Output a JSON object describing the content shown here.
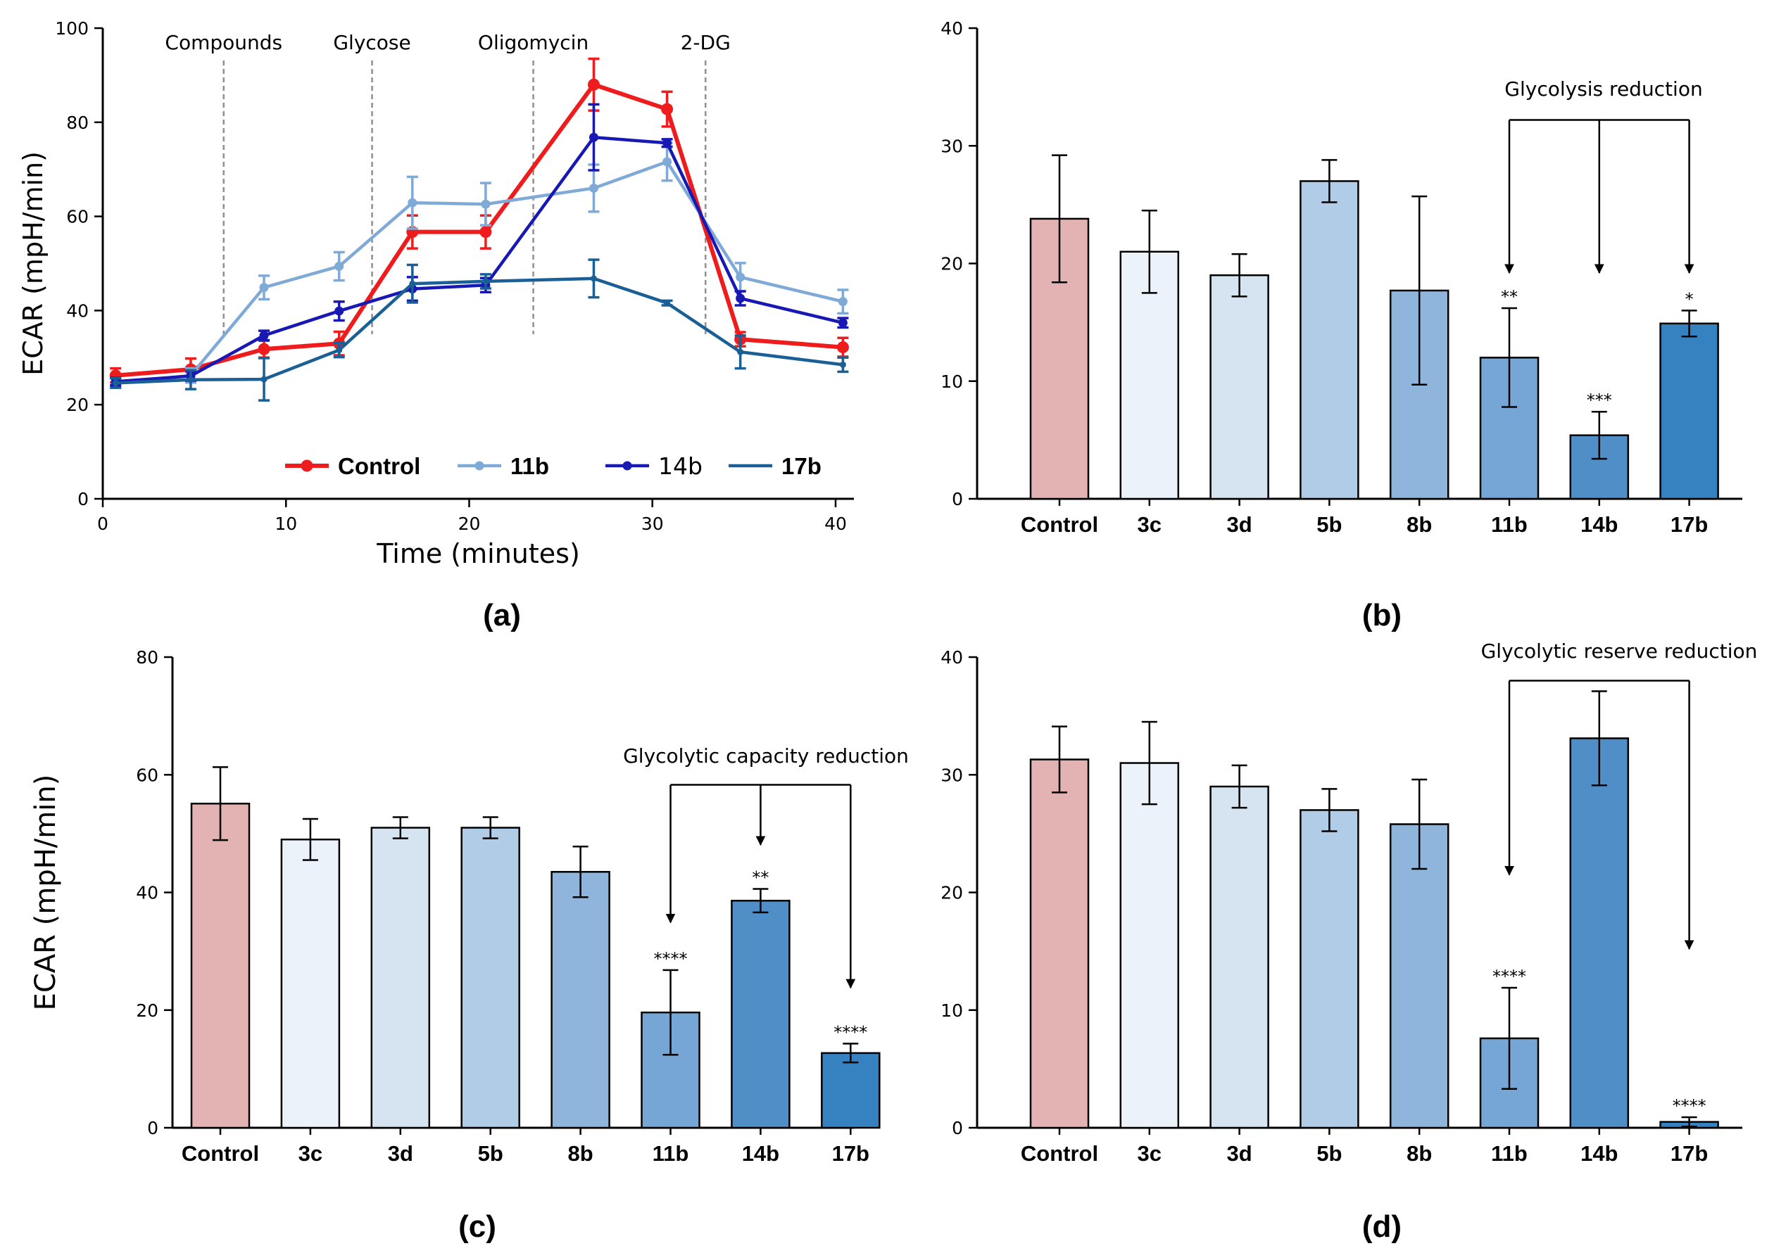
{
  "panel_labels": [
    "(a)",
    "(b)",
    "(c)",
    "(d)"
  ],
  "chart_data": [
    {
      "panel": "(a)",
      "type": "line",
      "xlabel": "Time (minutes)",
      "ylabel": "ECAR (mpH/min)",
      "xlim": [
        0,
        41
      ],
      "ylim": [
        0,
        100
      ],
      "xticks": [
        0,
        10,
        20,
        30,
        40
      ],
      "yticks": [
        0,
        20,
        40,
        60,
        80,
        100
      ],
      "injections": [
        {
          "label": "Compounds",
          "x": 6.6
        },
        {
          "label": "Glycose",
          "x": 14.7
        },
        {
          "label": "Oligomycin",
          "x": 23.5
        },
        {
          "label": "2-DG",
          "x": 32.9
        }
      ],
      "x": [
        0.7,
        4.8,
        8.8,
        12.9,
        16.9,
        20.9,
        26.8,
        30.8,
        34.8,
        40.4
      ],
      "series": [
        {
          "name": "Control",
          "color": "#ee1c1c",
          "bold": true,
          "values": [
            26.2,
            27.5,
            31.8,
            33,
            56.7,
            56.7,
            88,
            82.8,
            33.9,
            32.2
          ],
          "errors": [
            1.5,
            2.3,
            1.8,
            2.5,
            3.5,
            3.5,
            5.5,
            3.7,
            1.5,
            2.0
          ]
        },
        {
          "name": "11b",
          "color": "#7fa9d6",
          "bold": true,
          "values": [
            24.6,
            26.2,
            44.9,
            49.4,
            62.9,
            62.6,
            66,
            71.6,
            47.1,
            41.9
          ],
          "errors": [
            1.0,
            1.5,
            2.5,
            3.0,
            5.5,
            4.5,
            5.0,
            4.0,
            3.0,
            2.5
          ]
        },
        {
          "name": "14b",
          "color": "#1818b5",
          "bold": false,
          "values": [
            24.9,
            26.1,
            34.7,
            39.9,
            44.6,
            45.4,
            76.8,
            75.6,
            42.6,
            37.4
          ],
          "errors": [
            0.8,
            1.0,
            1.0,
            2.0,
            2.5,
            1.5,
            7.0,
            0.8,
            1.5,
            1.0
          ]
        },
        {
          "name": "17b",
          "color": "#1a5f96",
          "bold": true,
          "values": [
            24.6,
            25.3,
            25.4,
            31.6,
            45.7,
            46.2,
            46.8,
            41.6,
            31.2,
            28.5
          ],
          "errors": [
            1.0,
            2.0,
            4.5,
            1.5,
            4.0,
            1.5,
            4.0,
            0.5,
            3.5,
            1.5
          ]
        }
      ]
    },
    {
      "panel": "(b)",
      "type": "bar",
      "ylabel": "",
      "ylim": [
        0,
        40
      ],
      "yticks": [
        0,
        10,
        20,
        30,
        40
      ],
      "categories": [
        "Control",
        "3c",
        "3d",
        "5b",
        "8b",
        "11b",
        "14b",
        "17b"
      ],
      "values": [
        23.8,
        21,
        19,
        27,
        17.7,
        12,
        5.4,
        14.9
      ],
      "errors": [
        5.4,
        3.5,
        1.8,
        1.8,
        8.0,
        4.2,
        2.0,
        1.1
      ],
      "significance": [
        "",
        "",
        "",
        "",
        "",
        "**",
        "***",
        "*"
      ],
      "colors": [
        "#e3b2b2",
        "#ecf2f9",
        "#d6e4f2",
        "#b0cce6",
        "#8fb5dc",
        "#76a6d5",
        "#4f8ec7",
        "#3681c0"
      ],
      "annotation": {
        "text": "Glycolysis reduction",
        "targets": [
          5,
          6,
          7
        ],
        "bracket_y": 32.2,
        "arrow_tip": 19.2
      }
    },
    {
      "panel": "(c)",
      "type": "bar",
      "ylabel": "ECAR (mpH/min)",
      "ylim": [
        0,
        80
      ],
      "yticks": [
        0,
        20,
        40,
        60,
        80
      ],
      "categories": [
        "Control",
        "3c",
        "3d",
        "5b",
        "8b",
        "11b",
        "14b",
        "17b"
      ],
      "values": [
        55.1,
        49,
        51,
        51,
        43.5,
        19.6,
        38.6,
        12.7
      ],
      "errors": [
        6.2,
        3.5,
        1.8,
        1.8,
        4.3,
        7.2,
        2.0,
        1.6
      ],
      "significance": [
        "",
        "",
        "",
        "",
        "",
        "****",
        "**",
        "****"
      ],
      "colors": [
        "#e3b2b2",
        "#ecf2f9",
        "#d6e4f2",
        "#b0cce6",
        "#8fb5dc",
        "#76a6d5",
        "#4f8ec7",
        "#3681c0"
      ],
      "annotation": {
        "text": "Glycolytic capacity reduction",
        "targets": [
          5,
          6,
          7
        ],
        "bracket_y": 58.3,
        "arrow_tip_each": [
          34.9,
          48.1,
          23.8
        ]
      }
    },
    {
      "panel": "(d)",
      "type": "bar",
      "ylabel": "",
      "ylim": [
        0,
        40
      ],
      "yticks": [
        0,
        10,
        20,
        30,
        40
      ],
      "categories": [
        "Control",
        "3c",
        "3d",
        "5b",
        "8b",
        "11b",
        "14b",
        "17b"
      ],
      "values": [
        31.3,
        31,
        29,
        27,
        25.8,
        7.6,
        33.1,
        0.5
      ],
      "errors": [
        2.8,
        3.5,
        1.8,
        1.8,
        3.8,
        4.3,
        4.0,
        0.4
      ],
      "significance": [
        "",
        "",
        "",
        "",
        "",
        "****",
        "",
        "****"
      ],
      "colors": [
        "#e3b2b2",
        "#ecf2f9",
        "#d6e4f2",
        "#b0cce6",
        "#8fb5dc",
        "#76a6d5",
        "#4f8ec7",
        "#3681c0"
      ],
      "annotation": {
        "text": "Glycolytic reserve reduction",
        "targets": [
          5,
          7
        ],
        "bracket_y": 38.0,
        "arrow_tip_each": [
          21.5,
          15.2
        ]
      }
    }
  ]
}
